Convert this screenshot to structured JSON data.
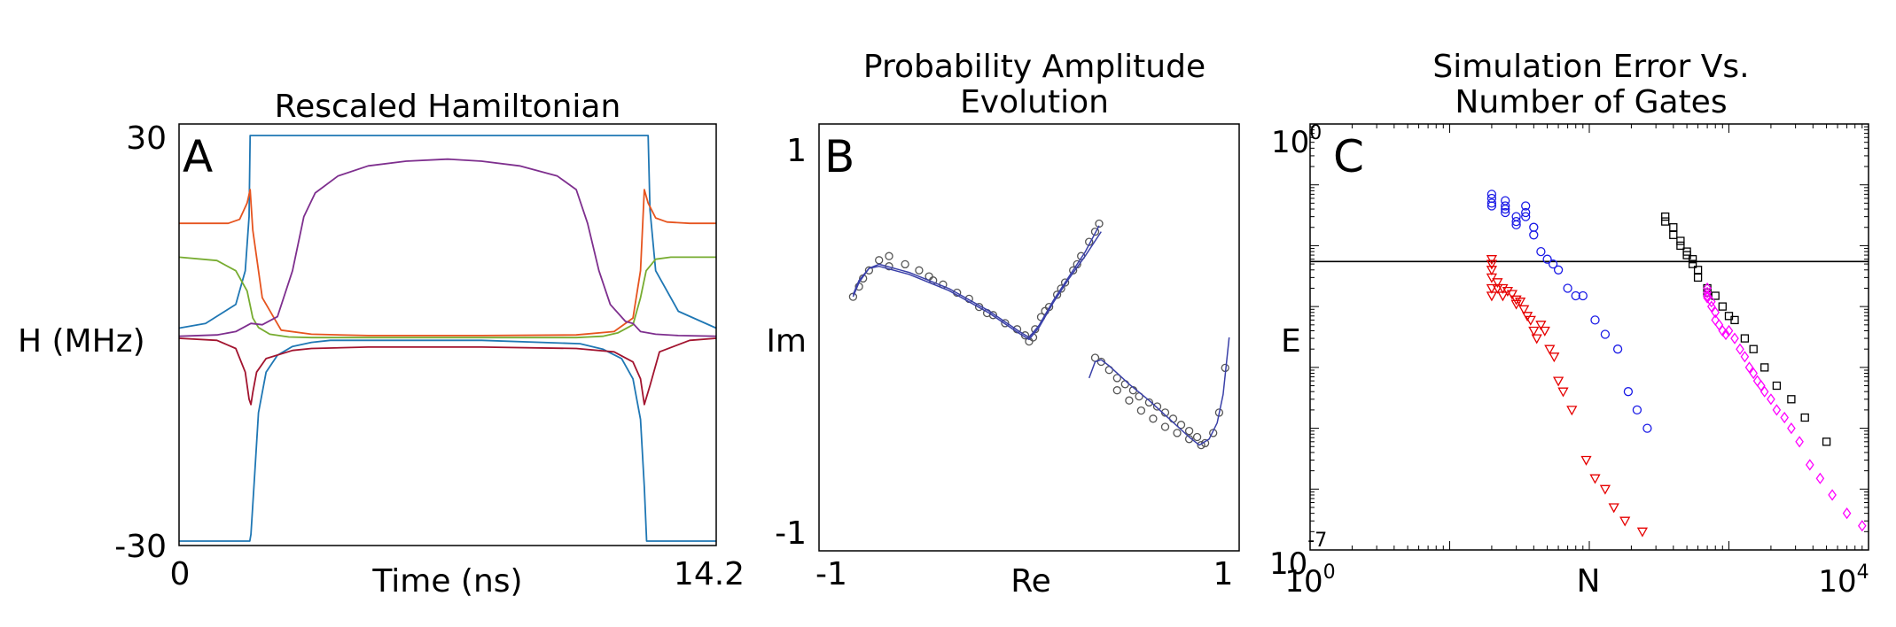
{
  "chart_data": [
    {
      "type": "line",
      "panel_letter": "A",
      "title": "Rescaled Hamiltonian",
      "xlabel": "Time (ns)",
      "ylabel": "H (MHz)",
      "xlim": [
        0,
        14.2
      ],
      "ylim": [
        -30,
        30
      ],
      "xtick_labels": [
        "0",
        "14.2"
      ],
      "ytick_labels": [
        "30",
        "-30"
      ],
      "series": [
        {
          "name": "blue",
          "color": "#1f77b4",
          "x": [
            0,
            0.7,
            1.5,
            1.75,
            1.85,
            1.88,
            1.9,
            1.95,
            2.1,
            2.6,
            3.6,
            5,
            8,
            10,
            11,
            12.0,
            12.3,
            12.4,
            12.45,
            12.6,
            13.2,
            14.2
          ],
          "y": [
            1.5,
            2.2,
            5,
            10,
            18,
            30,
            30,
            30,
            30,
            30,
            30,
            30,
            30,
            30,
            30,
            30,
            30,
            30,
            19,
            10,
            4,
            1.5
          ]
        },
        {
          "name": "blue",
          "color": "#1f77b4",
          "x": [
            0,
            1.87,
            1.9,
            2.0,
            2.1,
            2.3,
            2.6,
            3,
            3.5,
            4,
            5,
            8,
            10.6,
            11.2,
            11.7,
            12.0,
            12.2,
            12.3,
            12.36,
            12.4,
            14.2
          ],
          "y": [
            -30,
            -30,
            -29,
            -20,
            -11,
            -5,
            -2.5,
            -1.2,
            -0.6,
            -0.3,
            -0.3,
            -0.3,
            -0.8,
            -1.6,
            -3,
            -6,
            -12,
            -22,
            -30,
            -30,
            -30
          ]
        },
        {
          "name": "orange",
          "color": "#e6541f",
          "x": [
            0,
            1.3,
            1.6,
            1.8,
            1.88,
            1.95,
            2.2,
            2.7,
            3.5,
            5,
            8,
            10.5,
            11.5,
            12.0,
            12.2,
            12.3,
            12.4,
            12.6,
            12.9,
            13.5,
            14.2
          ],
          "y": [
            17,
            17,
            17.6,
            20,
            22,
            16,
            6,
            1.2,
            0.6,
            0.4,
            0.4,
            0.5,
            1,
            3,
            10,
            22,
            20,
            17.8,
            17.2,
            17,
            17
          ]
        },
        {
          "name": "green",
          "color": "#77ac30",
          "x": [
            0,
            1.0,
            1.5,
            1.8,
            1.95,
            2.1,
            2.4,
            2.9,
            3.5,
            5,
            8,
            10.5,
            11.2,
            11.6,
            12.0,
            12.2,
            12.35,
            12.6,
            13.0,
            14.2
          ],
          "y": [
            12,
            11.5,
            10,
            7,
            3,
            1.6,
            0.6,
            0.2,
            0.1,
            0.1,
            0.1,
            0.1,
            0.3,
            0.8,
            2,
            6,
            10,
            11.7,
            12,
            12
          ]
        },
        {
          "name": "purple",
          "color": "#7e2f8e",
          "x": [
            0,
            1.0,
            1.5,
            1.9,
            2.2,
            2.6,
            3.0,
            3.3,
            3.6,
            4.2,
            5,
            6,
            7.1,
            8,
            9,
            10,
            10.5,
            10.8,
            11.1,
            11.4,
            11.8,
            12.0,
            12.2,
            12.6,
            13.2,
            14.2
          ],
          "y": [
            0.3,
            0.5,
            1.0,
            2.2,
            2.0,
            3.2,
            10,
            18,
            21.5,
            24,
            25.5,
            26.2,
            26.5,
            26.2,
            25.5,
            24,
            22,
            17,
            10,
            5,
            2.5,
            2.2,
            1.0,
            0.6,
            0.4,
            0.3
          ]
        },
        {
          "name": "dark red",
          "color": "#a2142f",
          "x": [
            0,
            1.0,
            1.5,
            1.75,
            1.85,
            1.9,
            1.95,
            2.05,
            2.3,
            3,
            3.5,
            5,
            8,
            10.5,
            11.5,
            12.0,
            12.2,
            12.3,
            12.45,
            12.7,
            13.5,
            14.2
          ],
          "y": [
            0,
            -0.3,
            -1.5,
            -5,
            -9,
            -9.8,
            -8,
            -5,
            -3,
            -1.8,
            -1.5,
            -1.3,
            -1.3,
            -1.5,
            -2,
            -3.5,
            -6,
            -9.8,
            -7,
            -2,
            -0.3,
            0
          ]
        }
      ]
    },
    {
      "type": "scatter",
      "panel_letter": "B",
      "title": [
        "Probability Amplitude",
        "Evolution"
      ],
      "xlabel": "Re",
      "ylabel": "Im",
      "xlim": [
        -1.05,
        1.05
      ],
      "ylim": [
        -1.05,
        1.05
      ],
      "xtick_labels": [
        "-1",
        "1"
      ],
      "ytick_labels": [
        "1",
        "-1"
      ],
      "lines": [
        {
          "color": "#3a40a8",
          "x": [
            -0.88,
            -0.85,
            -0.8,
            -0.75,
            -0.6,
            -0.4,
            -0.2,
            -0.05,
            0.0,
            0.05,
            0.12,
            0.2,
            0.28,
            0.35
          ],
          "y": [
            0.2,
            0.27,
            0.34,
            0.36,
            0.32,
            0.24,
            0.13,
            0.03,
            0.0,
            0.06,
            0.18,
            0.3,
            0.42,
            0.55
          ]
        },
        {
          "color": "#3a40a8",
          "x": [
            -0.88,
            -0.85,
            -0.8,
            -0.75,
            -0.6,
            -0.4,
            -0.2,
            -0.05,
            0.0,
            0.05,
            0.12,
            0.2,
            0.28,
            0.36
          ],
          "y": [
            0.21,
            0.28,
            0.34,
            0.35,
            0.31,
            0.23,
            0.12,
            0.02,
            -0.01,
            0.05,
            0.17,
            0.29,
            0.4,
            0.52
          ]
        },
        {
          "color": "#3a40a8",
          "x": [
            0.3,
            0.33,
            0.36,
            0.4,
            0.5,
            0.6,
            0.7,
            0.8,
            0.85,
            0.9,
            0.94,
            0.97,
            1.0
          ],
          "y": [
            -0.2,
            -0.12,
            -0.11,
            -0.14,
            -0.23,
            -0.31,
            -0.4,
            -0.49,
            -0.53,
            -0.5,
            -0.42,
            -0.28,
            0.0
          ]
        }
      ],
      "markers": [
        {
          "color": "#555555",
          "x": [
            -0.85,
            -0.8,
            -0.75,
            -0.7,
            -0.62,
            -0.55,
            -0.5,
            -0.43,
            -0.36,
            -0.3,
            -0.25,
            -0.18,
            -0.12,
            -0.06,
            -0.02,
            0.0,
            0.03,
            0.06,
            0.1,
            0.14,
            0.18,
            0.22,
            0.26,
            0.3,
            0.33,
            0.35,
            -0.88,
            -0.83,
            -0.7,
            -0.48,
            -0.21,
            0.02,
            0.08,
            0.16,
            0.24
          ],
          "y": [
            0.25,
            0.33,
            0.38,
            0.4,
            0.36,
            0.33,
            0.3,
            0.26,
            0.22,
            0.19,
            0.15,
            0.11,
            0.07,
            0.04,
            0.01,
            -0.02,
            0.04,
            0.1,
            0.15,
            0.21,
            0.27,
            0.33,
            0.4,
            0.47,
            0.52,
            0.56,
            0.2,
            0.29,
            0.35,
            0.28,
            0.12,
            0.0,
            0.13,
            0.24,
            0.36
          ]
        },
        {
          "color": "#555555",
          "x": [
            0.33,
            0.36,
            0.4,
            0.44,
            0.48,
            0.52,
            0.55,
            0.6,
            0.64,
            0.68,
            0.72,
            0.76,
            0.8,
            0.84,
            0.88,
            0.92,
            0.95,
            0.98,
            0.44,
            0.5,
            0.56,
            0.62,
            0.68,
            0.74,
            0.8,
            0.86
          ],
          "y": [
            -0.1,
            -0.12,
            -0.16,
            -0.2,
            -0.23,
            -0.26,
            -0.29,
            -0.32,
            -0.34,
            -0.37,
            -0.4,
            -0.43,
            -0.46,
            -0.49,
            -0.52,
            -0.47,
            -0.37,
            -0.15,
            -0.26,
            -0.31,
            -0.36,
            -0.4,
            -0.44,
            -0.47,
            -0.5,
            -0.53
          ]
        }
      ]
    },
    {
      "type": "scatter",
      "panel_letter": "C",
      "title": [
        "Simulation Error Vs.",
        "Number of Gates"
      ],
      "xlabel": "N",
      "ylabel": "E",
      "xscale": "log",
      "yscale": "log",
      "xlim": [
        1,
        10000
      ],
      "ylim": [
        1e-07,
        1
      ],
      "xtick_labels": [
        {
          "base": "10",
          "exp": "0"
        },
        {
          "base": "10",
          "exp": "4"
        }
      ],
      "ytick_labels": [
        {
          "base": "10",
          "exp": "0"
        },
        {
          "base": "10",
          "exp": "-7"
        }
      ],
      "hline": 0.0055,
      "series": [
        {
          "name": "blue circles",
          "marker": "circle",
          "color": "#1a1ae6",
          "x": [
            20,
            20,
            20,
            20,
            25,
            25,
            25,
            25,
            30,
            30,
            30,
            35,
            35,
            35,
            40,
            40,
            45,
            50,
            55,
            60,
            70,
            80,
            90,
            110,
            130,
            160,
            190,
            220,
            260
          ],
          "y": [
            0.07,
            0.06,
            0.05,
            0.045,
            0.055,
            0.045,
            0.04,
            0.035,
            0.03,
            0.025,
            0.022,
            0.045,
            0.035,
            0.03,
            0.02,
            0.015,
            0.008,
            0.006,
            0.005,
            0.004,
            0.002,
            0.0015,
            0.0015,
            0.0006,
            0.00035,
            0.0002,
            4e-05,
            2e-05,
            1e-05
          ]
        },
        {
          "name": "black squares",
          "marker": "square",
          "color": "#000000",
          "x": [
            350,
            350,
            400,
            400,
            450,
            450,
            500,
            500,
            550,
            550,
            600,
            600,
            700,
            700,
            800,
            900,
            1000,
            1100,
            1300,
            1500,
            1800,
            2200,
            2800,
            3500,
            5000
          ],
          "y": [
            0.03,
            0.025,
            0.02,
            0.015,
            0.012,
            0.01,
            0.008,
            0.007,
            0.006,
            0.005,
            0.004,
            0.003,
            0.002,
            0.0017,
            0.0015,
            0.001,
            0.0007,
            0.0006,
            0.0003,
            0.0002,
            0.0001,
            5e-05,
            3e-05,
            1.5e-05,
            6e-06
          ]
        },
        {
          "name": "magenta diamonds",
          "marker": "diamond",
          "color": "#ff00ff",
          "x": [
            700,
            700,
            700,
            700,
            750,
            750,
            800,
            800,
            850,
            900,
            950,
            1000,
            1100,
            1200,
            1300,
            1400,
            1500,
            1600,
            1700,
            1800,
            2000,
            2200,
            2500,
            2800,
            3200,
            3800,
            4500,
            5500,
            7000,
            9000
          ],
          "y": [
            0.002,
            0.0017,
            0.0015,
            0.0014,
            0.0012,
            0.001,
            0.0008,
            0.0006,
            0.0005,
            0.0004,
            0.00035,
            0.0004,
            0.0003,
            0.0002,
            0.00015,
            0.0001,
            8e-05,
            6e-05,
            5e-05,
            4e-05,
            3e-05,
            2e-05,
            1.5e-05,
            1e-05,
            6e-06,
            2.5e-06,
            1.5e-06,
            8e-07,
            4e-07,
            2.5e-07
          ]
        },
        {
          "name": "red triangles",
          "marker": "triangle",
          "color": "#e60000",
          "x": [
            20,
            20,
            20,
            20,
            20,
            20,
            22,
            22,
            24,
            24,
            26,
            28,
            30,
            30,
            32,
            34,
            36,
            38,
            40,
            42,
            45,
            48,
            52,
            56,
            60,
            65,
            75,
            95,
            110,
            130,
            150,
            180,
            240
          ],
          "y": [
            0.006,
            0.005,
            0.004,
            0.003,
            0.002,
            0.0015,
            0.0025,
            0.002,
            0.002,
            0.0015,
            0.0018,
            0.0016,
            0.0013,
            0.0011,
            0.0012,
            0.0009,
            0.0007,
            0.0006,
            0.0004,
            0.0003,
            0.0005,
            0.0004,
            0.0002,
            0.00015,
            6e-05,
            4e-05,
            2e-05,
            3e-06,
            1.5e-06,
            1e-06,
            5e-07,
            3e-07,
            2e-07
          ]
        }
      ]
    }
  ]
}
